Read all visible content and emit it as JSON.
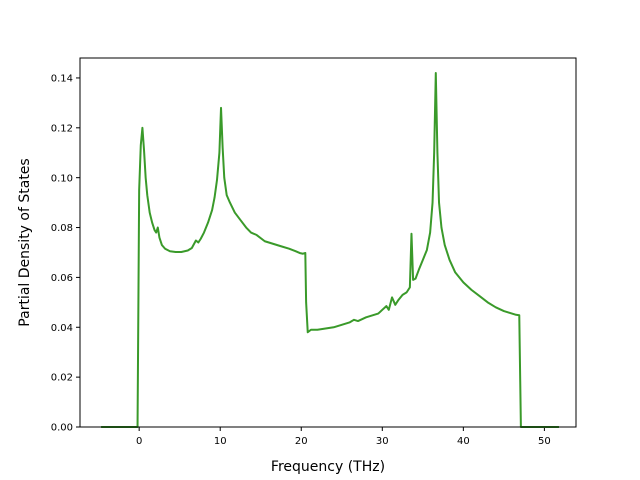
{
  "chart_data": {
    "type": "line",
    "title": "",
    "xlabel": "Frequency (THz)",
    "ylabel": "Partial Density of States",
    "xlim": [
      -7.3,
      53.9
    ],
    "ylim": [
      0.0,
      0.148
    ],
    "xticks": [
      0,
      10,
      20,
      30,
      40,
      50
    ],
    "xtick_labels": [
      "0",
      "10",
      "20",
      "30",
      "40",
      "50"
    ],
    "yticks": [
      0.0,
      0.02,
      0.04,
      0.06,
      0.08,
      0.1,
      0.12,
      0.14
    ],
    "ytick_labels": [
      "0.00",
      "0.02",
      "0.04",
      "0.06",
      "0.08",
      "0.10",
      "0.12",
      "0.14"
    ],
    "grid": false,
    "legend": "none",
    "series": [
      {
        "color": "#3a9a2a",
        "x": [
          -4.7,
          -0.2,
          0.0,
          0.2,
          0.4,
          0.6,
          0.8,
          1.0,
          1.3,
          1.6,
          1.9,
          2.1,
          2.3,
          2.5,
          2.8,
          3.2,
          3.8,
          4.5,
          5.2,
          6.0,
          6.5,
          7.0,
          7.3,
          7.6,
          8.0,
          8.5,
          9.0,
          9.3,
          9.6,
          9.9,
          10.1,
          10.3,
          10.5,
          10.8,
          11.2,
          11.8,
          12.5,
          13.2,
          13.8,
          14.5,
          15.5,
          16.5,
          17.5,
          18.5,
          19.3,
          19.8,
          20.2,
          20.5,
          20.6,
          20.8,
          21.2,
          22.0,
          23.0,
          24.0,
          25.0,
          26.0,
          26.5,
          27.0,
          28.0,
          29.0,
          29.5,
          30.0,
          30.5,
          30.8,
          31.2,
          31.6,
          32.0,
          32.5,
          33.0,
          33.4,
          33.6,
          33.8,
          34.1,
          34.5,
          35.0,
          35.5,
          35.9,
          36.2,
          36.4,
          36.6,
          36.8,
          37.0,
          37.3,
          37.7,
          38.3,
          39.0,
          40.0,
          41.0,
          42.0,
          43.0,
          44.0,
          45.0,
          45.5,
          46.0,
          46.5,
          46.9,
          47.1,
          48.0,
          51.8
        ],
        "y": [
          0.0,
          0.0,
          0.095,
          0.113,
          0.12,
          0.111,
          0.1,
          0.093,
          0.086,
          0.082,
          0.079,
          0.078,
          0.08,
          0.076,
          0.073,
          0.0715,
          0.0705,
          0.0702,
          0.0702,
          0.0708,
          0.0718,
          0.0748,
          0.074,
          0.0755,
          0.078,
          0.082,
          0.087,
          0.092,
          0.099,
          0.11,
          0.128,
          0.112,
          0.1,
          0.093,
          0.09,
          0.086,
          0.083,
          0.08,
          0.078,
          0.077,
          0.0745,
          0.0735,
          0.0725,
          0.0715,
          0.0705,
          0.0698,
          0.0695,
          0.0698,
          0.05,
          0.038,
          0.039,
          0.039,
          0.0395,
          0.04,
          0.041,
          0.042,
          0.043,
          0.0425,
          0.044,
          0.045,
          0.0455,
          0.047,
          0.0485,
          0.047,
          0.052,
          0.049,
          0.051,
          0.053,
          0.054,
          0.056,
          0.0775,
          0.059,
          0.0595,
          0.063,
          0.067,
          0.071,
          0.078,
          0.09,
          0.11,
          0.142,
          0.11,
          0.09,
          0.08,
          0.073,
          0.067,
          0.062,
          0.058,
          0.055,
          0.0525,
          0.05,
          0.048,
          0.0465,
          0.046,
          0.0455,
          0.045,
          0.0448,
          0.0,
          0.0,
          0.0
        ]
      }
    ]
  }
}
